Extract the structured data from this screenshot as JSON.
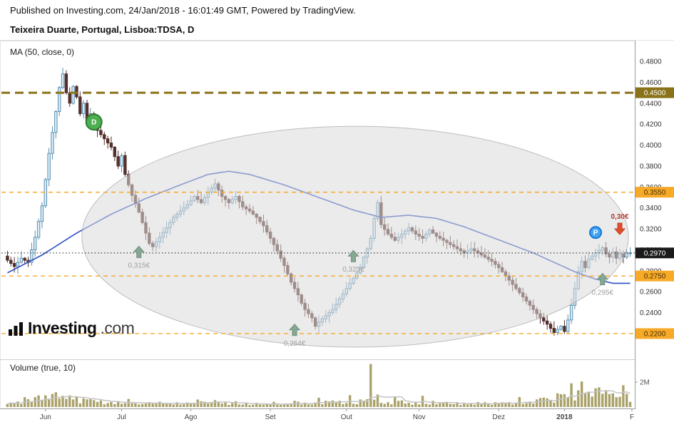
{
  "header": {
    "published_line": "Published on Investing.com, 24/Jan/2018 - 16:01:49 GMT, Powered by TradingView.",
    "instrument_line": "Teixeira Duarte, Portugal, Lisboa:TDSA, D"
  },
  "indicators": {
    "ma_label": "MA (50, close, 0)",
    "volume_label": "Volume (true, 10)"
  },
  "watermark": {
    "bold": "Investing",
    "suffix": ".com"
  },
  "colors": {
    "candle_up_fill": "#d9ecf7",
    "candle_up_border": "#5a8fb0",
    "candle_down": "#54302c",
    "ma_line": "#2e4fc4",
    "volume_bar": "#a59d62",
    "volume_ma_line": "#c4c4c4",
    "ellipse_fill": "rgba(219,219,219,0.55)",
    "ellipse_stroke": "rgba(160,160,160,0.65)",
    "arrow_up": "#86a893",
    "arrow_up_stroke": "#6e9180",
    "arrow_down": "#e04f2d",
    "arrow_down_stroke": "#bf3c1d",
    "arrow_label": "#9e9e9e",
    "arrow_down_label": "#b03a2e",
    "axis_text": "#333333",
    "accent_olive": "#8a7218",
    "accent_orange": "#f7a928"
  },
  "chart_data": {
    "type": "candlestick",
    "title": "Teixeira Duarte, Portugal, Lisboa:TDSA, D",
    "timeframe": "D",
    "num_days": 181,
    "ylim": [
      0.195,
      0.5
    ],
    "y_ticks_top": 0.48,
    "y_tick_labels": [
      "0.4800",
      "0.4600",
      "0.4400",
      "0.4200",
      "0.4000",
      "0.3800",
      "0.3600",
      "0.3400",
      "0.3200",
      "0.3000",
      "0.2800",
      "0.2600",
      "0.2400",
      "0.2200"
    ],
    "x_labels": [
      {
        "label": "Jun",
        "day": 11
      },
      {
        "label": "Jul",
        "day": 33
      },
      {
        "label": "Ago",
        "day": 53
      },
      {
        "label": "Set",
        "day": 76
      },
      {
        "label": "Out",
        "day": 98
      },
      {
        "label": "Nov",
        "day": 119
      },
      {
        "label": "Dez",
        "day": 142
      },
      {
        "label": "2018",
        "day": 161,
        "bold": true
      },
      {
        "label": "F",
        "day": 180.5
      }
    ],
    "levels": [
      {
        "value": 0.45,
        "label": "0.4500",
        "style": "dashed-bold",
        "line_color": "#8a7218",
        "box_bg": "#8a7218",
        "box_text": "#ffffff"
      },
      {
        "value": 0.355,
        "label": "0.3550",
        "style": "dashed",
        "line_color": "#f7a928",
        "box_bg": "#f7a928",
        "box_text": "#4a3000"
      },
      {
        "value": 0.297,
        "label": "0.2970",
        "style": "dotted",
        "line_color": "#1a1a1a",
        "box_bg": "#1a1a1a",
        "box_text": "#ffffff"
      },
      {
        "value": 0.275,
        "label": "0.2750",
        "style": "dashed",
        "line_color": "#f7a928",
        "box_bg": "#f7a928",
        "box_text": "#4a3000"
      },
      {
        "value": 0.22,
        "label": "0.2200",
        "style": "dashed",
        "line_color": "#f7a928",
        "box_bg": "#f7a928",
        "box_text": "#4a3000"
      }
    ],
    "close_anchors": [
      [
        0,
        0.29
      ],
      [
        2,
        0.284
      ],
      [
        4,
        0.292
      ],
      [
        6,
        0.288
      ],
      [
        7,
        0.3
      ],
      [
        8,
        0.312
      ],
      [
        10,
        0.342
      ],
      [
        12,
        0.392
      ],
      [
        14,
        0.432
      ],
      [
        15,
        0.455
      ],
      [
        16,
        0.468
      ],
      [
        17,
        0.45
      ],
      [
        18,
        0.44
      ],
      [
        19,
        0.456
      ],
      [
        20,
        0.446
      ],
      [
        21,
        0.43
      ],
      [
        22,
        0.44
      ],
      [
        23,
        0.424
      ],
      [
        24,
        0.43
      ],
      [
        26,
        0.414
      ],
      [
        28,
        0.406
      ],
      [
        30,
        0.398
      ],
      [
        32,
        0.38
      ],
      [
        33,
        0.39
      ],
      [
        34,
        0.372
      ],
      [
        36,
        0.352
      ],
      [
        38,
        0.336
      ],
      [
        40,
        0.316
      ],
      [
        41,
        0.306
      ],
      [
        42,
        0.303
      ],
      [
        44,
        0.312
      ],
      [
        46,
        0.321
      ],
      [
        48,
        0.331
      ],
      [
        50,
        0.337
      ],
      [
        52,
        0.343
      ],
      [
        54,
        0.351
      ],
      [
        56,
        0.345
      ],
      [
        58,
        0.355
      ],
      [
        60,
        0.363
      ],
      [
        62,
        0.351
      ],
      [
        64,
        0.345
      ],
      [
        66,
        0.351
      ],
      [
        68,
        0.341
      ],
      [
        70,
        0.337
      ],
      [
        72,
        0.331
      ],
      [
        74,
        0.323
      ],
      [
        76,
        0.311
      ],
      [
        78,
        0.299
      ],
      [
        80,
        0.285
      ],
      [
        82,
        0.269
      ],
      [
        84,
        0.257
      ],
      [
        85,
        0.249
      ],
      [
        86,
        0.243
      ],
      [
        88,
        0.235
      ],
      [
        89,
        0.227
      ],
      [
        90,
        0.231
      ],
      [
        92,
        0.237
      ],
      [
        94,
        0.243
      ],
      [
        96,
        0.253
      ],
      [
        98,
        0.263
      ],
      [
        100,
        0.273
      ],
      [
        102,
        0.283
      ],
      [
        103,
        0.293
      ],
      [
        104,
        0.301
      ],
      [
        105,
        0.311
      ],
      [
        106,
        0.33
      ],
      [
        107,
        0.345
      ],
      [
        108,
        0.324
      ],
      [
        110,
        0.315
      ],
      [
        112,
        0.309
      ],
      [
        114,
        0.315
      ],
      [
        116,
        0.321
      ],
      [
        118,
        0.315
      ],
      [
        120,
        0.311
      ],
      [
        122,
        0.319
      ],
      [
        124,
        0.313
      ],
      [
        126,
        0.309
      ],
      [
        128,
        0.305
      ],
      [
        130,
        0.301
      ],
      [
        132,
        0.297
      ],
      [
        134,
        0.301
      ],
      [
        136,
        0.297
      ],
      [
        138,
        0.293
      ],
      [
        140,
        0.289
      ],
      [
        142,
        0.283
      ],
      [
        144,
        0.275
      ],
      [
        146,
        0.267
      ],
      [
        148,
        0.259
      ],
      [
        150,
        0.251
      ],
      [
        152,
        0.243
      ],
      [
        154,
        0.235
      ],
      [
        156,
        0.229
      ],
      [
        158,
        0.221
      ],
      [
        160,
        0.227
      ],
      [
        161,
        0.222
      ],
      [
        162,
        0.233
      ],
      [
        163,
        0.247
      ],
      [
        164,
        0.263
      ],
      [
        165,
        0.279
      ],
      [
        166,
        0.289
      ],
      [
        167,
        0.283
      ],
      [
        168,
        0.291
      ],
      [
        170,
        0.297
      ],
      [
        172,
        0.302
      ],
      [
        173,
        0.296
      ],
      [
        174,
        0.293
      ],
      [
        175,
        0.298
      ],
      [
        176,
        0.292
      ],
      [
        177,
        0.296
      ],
      [
        178,
        0.293
      ],
      [
        179,
        0.297
      ],
      [
        180,
        0.297
      ]
    ],
    "ma50_anchors": [
      [
        0,
        0.278
      ],
      [
        10,
        0.295
      ],
      [
        20,
        0.316
      ],
      [
        30,
        0.334
      ],
      [
        40,
        0.349
      ],
      [
        50,
        0.362
      ],
      [
        58,
        0.372
      ],
      [
        64,
        0.375
      ],
      [
        70,
        0.372
      ],
      [
        80,
        0.362
      ],
      [
        90,
        0.35
      ],
      [
        100,
        0.338
      ],
      [
        108,
        0.331
      ],
      [
        116,
        0.333
      ],
      [
        124,
        0.33
      ],
      [
        132,
        0.322
      ],
      [
        140,
        0.312
      ],
      [
        148,
        0.302
      ],
      [
        152,
        0.297
      ],
      [
        158,
        0.288
      ],
      [
        164,
        0.279
      ],
      [
        170,
        0.272
      ],
      [
        175,
        0.268
      ],
      [
        180,
        0.268
      ]
    ],
    "markers": [
      {
        "type": "circle",
        "label": "D",
        "day": 25,
        "price": 0.422,
        "fill": "#4caf50",
        "stroke": "#2e7d32",
        "r": 11
      },
      {
        "type": "arrow-up",
        "label": "0,315€",
        "day": 38,
        "price": 0.298
      },
      {
        "type": "arrow-up",
        "label": "0,264€",
        "day": 83,
        "price": 0.2235
      },
      {
        "type": "arrow-up",
        "label": "0,325€",
        "day": 100,
        "price": 0.294
      },
      {
        "type": "arrow-up",
        "label": "0,295€",
        "day": 172,
        "price": 0.272
      },
      {
        "type": "circle",
        "label": "P",
        "day": 170,
        "price": 0.3165,
        "fill": "#42a5f5",
        "stroke": "#1976d2",
        "r": 8
      },
      {
        "type": "arrow-down",
        "label": "0,30€",
        "day": 177,
        "price": 0.32
      }
    ],
    "ellipse": {
      "day_center": 100.5,
      "price_center": 0.3125,
      "day_radius": 79,
      "price_radius": 0.1055
    },
    "volume_base_anchors": [
      [
        0,
        0.35
      ],
      [
        8,
        0.7
      ],
      [
        14,
        0.85
      ],
      [
        20,
        0.6
      ],
      [
        30,
        0.35
      ],
      [
        40,
        0.3
      ],
      [
        50,
        0.35
      ],
      [
        60,
        0.4
      ],
      [
        70,
        0.3
      ],
      [
        80,
        0.35
      ],
      [
        90,
        0.4
      ],
      [
        100,
        0.5
      ],
      [
        108,
        0.5
      ],
      [
        116,
        0.4
      ],
      [
        124,
        0.35
      ],
      [
        132,
        0.3
      ],
      [
        140,
        0.3
      ],
      [
        148,
        0.45
      ],
      [
        156,
        0.6
      ],
      [
        162,
        1.0
      ],
      [
        168,
        1.2
      ],
      [
        174,
        1.1
      ],
      [
        180,
        0.9
      ]
    ],
    "volume_spikes": [
      [
        13,
        1.05
      ],
      [
        16,
        0.9
      ],
      [
        35,
        0.65
      ],
      [
        55,
        0.6
      ],
      [
        90,
        0.75
      ],
      [
        99,
        0.95
      ],
      [
        105,
        3.45
      ],
      [
        107,
        1.0
      ],
      [
        112,
        0.85
      ],
      [
        120,
        0.9
      ],
      [
        148,
        0.8
      ],
      [
        159,
        1.1
      ],
      [
        163,
        1.9
      ],
      [
        166,
        2.05
      ],
      [
        170,
        1.5
      ],
      [
        173,
        1.35
      ],
      [
        178,
        1.75
      ]
    ],
    "volume_axis_label": "2M",
    "volume_axis_value": 2
  }
}
